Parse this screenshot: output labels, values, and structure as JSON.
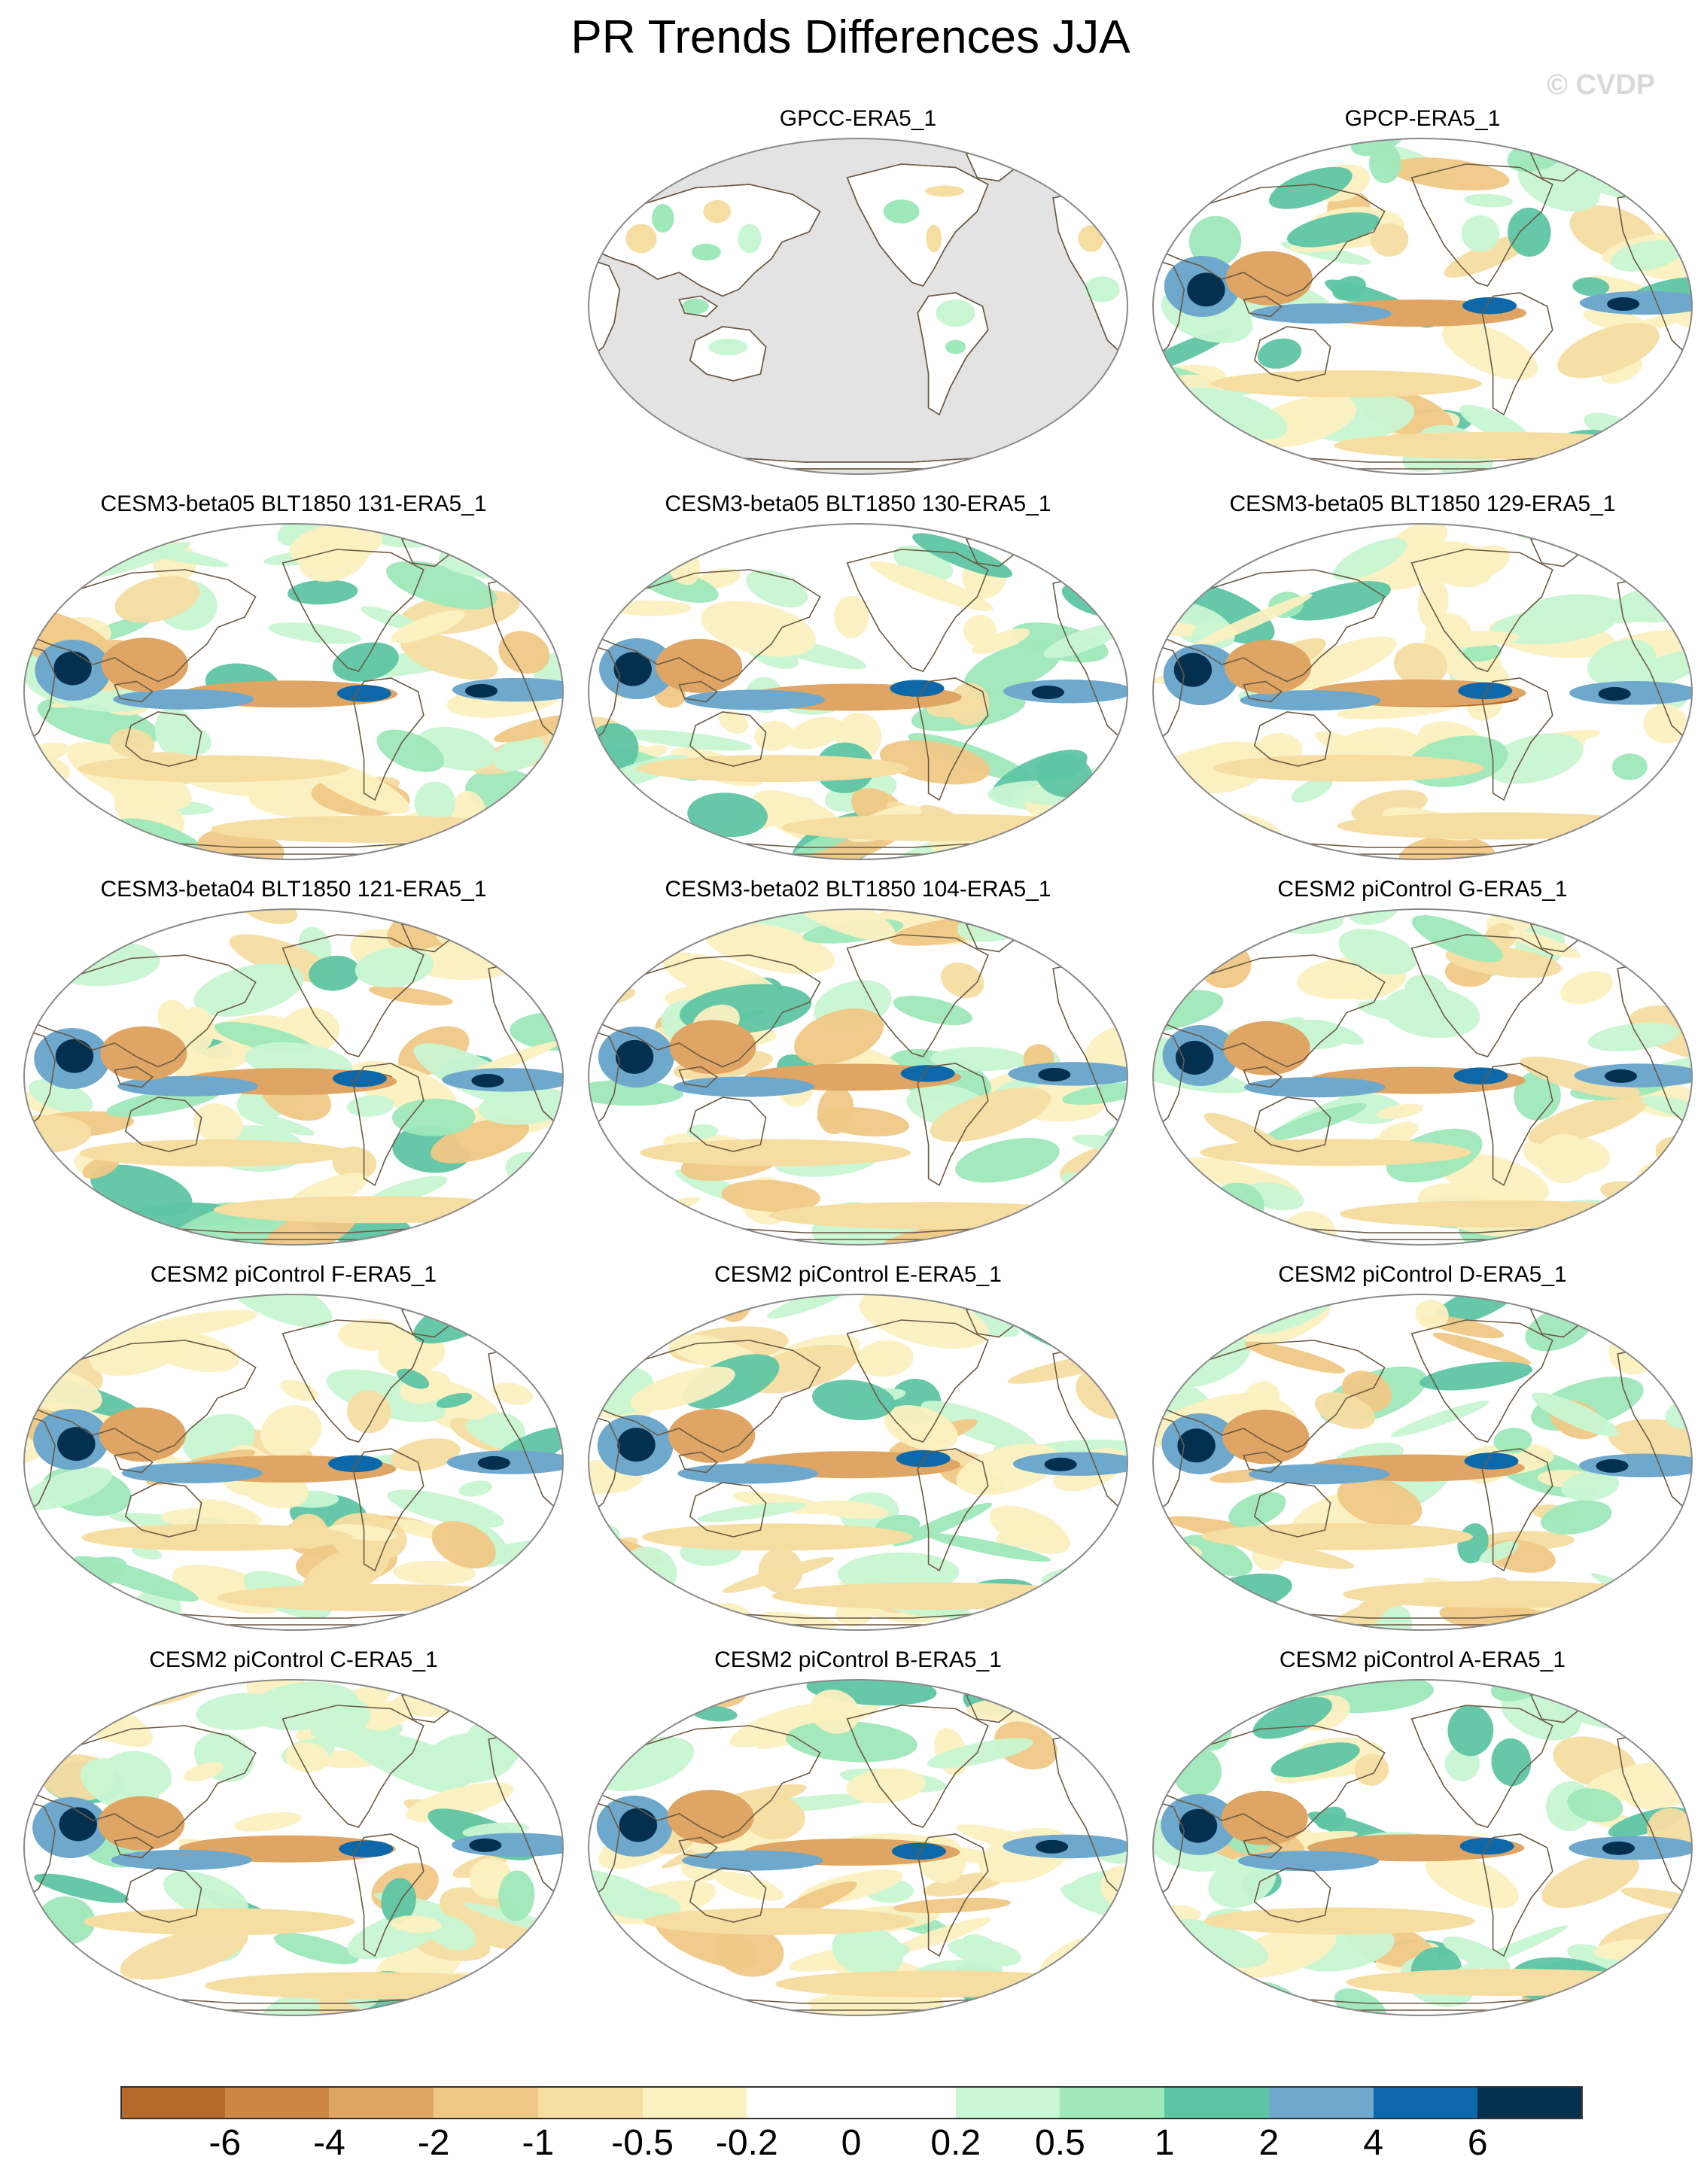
{
  "title": "PR Trends Differences JJA",
  "watermark": "© CVDP",
  "panels": [
    {
      "label": "GPCC-ERA5_1",
      "land_only": true
    },
    {
      "label": "GPCP-ERA5_1",
      "land_only": false
    },
    {
      "label": "CESM3-beta05 BLT1850 131-ERA5_1",
      "land_only": false
    },
    {
      "label": "CESM3-beta05 BLT1850 130-ERA5_1",
      "land_only": false
    },
    {
      "label": "CESM3-beta05 BLT1850 129-ERA5_1",
      "land_only": false
    },
    {
      "label": "CESM3-beta04 BLT1850 121-ERA5_1",
      "land_only": false
    },
    {
      "label": "CESM3-beta02 BLT1850 104-ERA5_1",
      "land_only": false
    },
    {
      "label": "CESM2 piControl G-ERA5_1",
      "land_only": false
    },
    {
      "label": "CESM2 piControl F-ERA5_1",
      "land_only": false
    },
    {
      "label": "CESM2 piControl E-ERA5_1",
      "land_only": false
    },
    {
      "label": "CESM2 piControl D-ERA5_1",
      "land_only": false
    },
    {
      "label": "CESM2 piControl C-ERA5_1",
      "land_only": false
    },
    {
      "label": "CESM2 piControl B-ERA5_1",
      "land_only": false
    },
    {
      "label": "CESM2 piControl A-ERA5_1",
      "land_only": false
    }
  ],
  "colorbar": {
    "labels": [
      "-6",
      "-4",
      "-2",
      "-1",
      "-0.5",
      "-0.2",
      "0",
      "0.2",
      "0.5",
      "1",
      "2",
      "4",
      "6"
    ],
    "colors": [
      "#b5692a",
      "#cc8744",
      "#dea564",
      "#f0c886",
      "#f6dda2",
      "#fbf0c0",
      "#ffffff",
      "#ffffff",
      "#c8f5d2",
      "#9ee8b9",
      "#5ec5a4",
      "#6ea8cc",
      "#0c68a8",
      "#04304f"
    ]
  },
  "palette": {
    "land_mask": "#e3e3e3",
    "coast": "#6b5a45",
    "frame": "#8a8a8a"
  }
}
